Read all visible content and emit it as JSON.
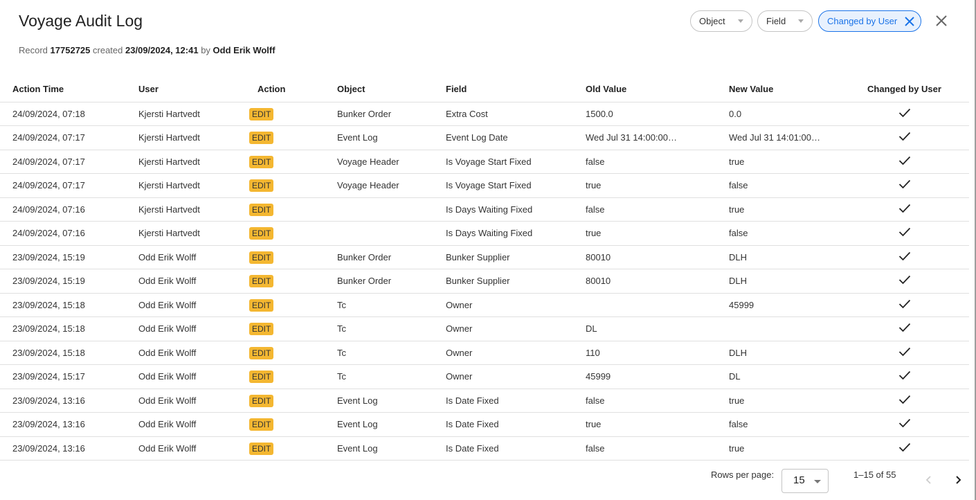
{
  "title": "Voyage Audit Log",
  "subtitle": {
    "record_label": "Record",
    "record_id": "17752725",
    "created_label": "created",
    "created_at": "23/09/2024, 12:41",
    "by_label": "by",
    "created_by": "Odd Erik Wolff"
  },
  "filters": [
    {
      "label": "Object",
      "active": false
    },
    {
      "label": "Field",
      "active": false
    },
    {
      "label": "Changed by User",
      "active": true
    }
  ],
  "accent": "#1a73e8",
  "badge_color": "#f4b731",
  "columns": [
    "Action Time",
    "User",
    "Action",
    "Object",
    "Field",
    "Old Value",
    "New Value",
    "Changed by User"
  ],
  "rows": [
    [
      "24/09/2024, 07:18",
      "Kjersti Hartvedt",
      "EDIT",
      "Bunker Order",
      "Extra Cost",
      "1500.0",
      "0.0",
      true
    ],
    [
      "24/09/2024, 07:17",
      "Kjersti Hartvedt",
      "EDIT",
      "Event Log",
      "Event Log Date",
      "Wed Jul 31 14:00:00…",
      "Wed Jul 31 14:01:00…",
      true
    ],
    [
      "24/09/2024, 07:17",
      "Kjersti Hartvedt",
      "EDIT",
      "Voyage Header",
      "Is Voyage Start Fixed",
      "false",
      "true",
      true
    ],
    [
      "24/09/2024, 07:17",
      "Kjersti Hartvedt",
      "EDIT",
      "Voyage Header",
      "Is Voyage Start Fixed",
      "true",
      "false",
      true
    ],
    [
      "24/09/2024, 07:16",
      "Kjersti Hartvedt",
      "EDIT",
      "",
      "Is Days Waiting Fixed",
      "false",
      "true",
      true
    ],
    [
      "24/09/2024, 07:16",
      "Kjersti Hartvedt",
      "EDIT",
      "",
      "Is Days Waiting Fixed",
      "true",
      "false",
      true
    ],
    [
      "23/09/2024, 15:19",
      "Odd Erik Wolff",
      "EDIT",
      "Bunker Order",
      "Bunker Supplier",
      "80010",
      "DLH",
      true
    ],
    [
      "23/09/2024, 15:19",
      "Odd Erik Wolff",
      "EDIT",
      "Bunker Order",
      "Bunker Supplier",
      "80010",
      "DLH",
      true
    ],
    [
      "23/09/2024, 15:18",
      "Odd Erik Wolff",
      "EDIT",
      "Tc",
      "Owner",
      "",
      "45999",
      true
    ],
    [
      "23/09/2024, 15:18",
      "Odd Erik Wolff",
      "EDIT",
      "Tc",
      "Owner",
      "DL",
      "",
      true
    ],
    [
      "23/09/2024, 15:18",
      "Odd Erik Wolff",
      "EDIT",
      "Tc",
      "Owner",
      "110",
      "DLH",
      true
    ],
    [
      "23/09/2024, 15:17",
      "Odd Erik Wolff",
      "EDIT",
      "Tc",
      "Owner",
      "45999",
      "DL",
      true
    ],
    [
      "23/09/2024, 13:16",
      "Odd Erik Wolff",
      "EDIT",
      "Event Log",
      "Is Date Fixed",
      "false",
      "true",
      true
    ],
    [
      "23/09/2024, 13:16",
      "Odd Erik Wolff",
      "EDIT",
      "Event Log",
      "Is Date Fixed",
      "true",
      "false",
      true
    ],
    [
      "23/09/2024, 13:16",
      "Odd Erik Wolff",
      "EDIT",
      "Event Log",
      "Is Date Fixed",
      "false",
      "true",
      true
    ]
  ],
  "pagination": {
    "rows_per_page_label": "Rows per page:",
    "rows_per_page": "15",
    "range": "1–15 of 55"
  }
}
